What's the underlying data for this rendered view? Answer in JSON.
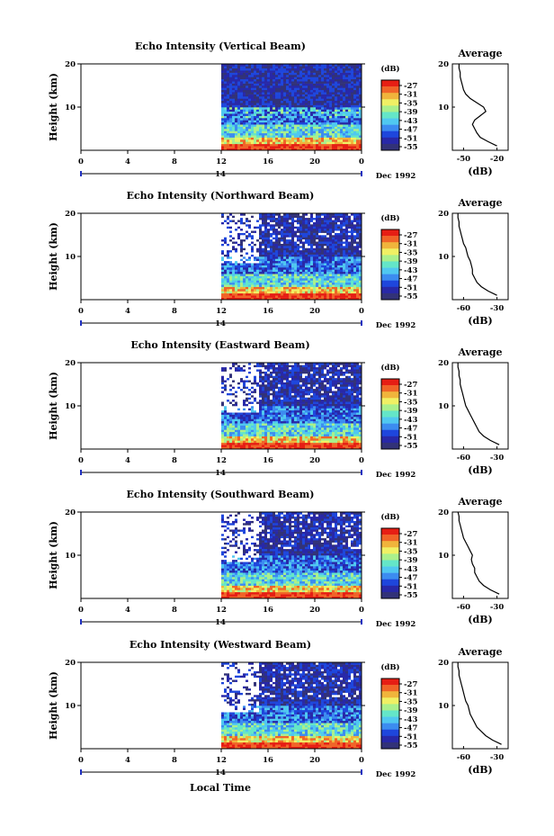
{
  "figure": {
    "xlabel": "Local Time",
    "date_label": "14",
    "date_suffix": "Dec 1992",
    "avg_title": "Average",
    "avg_xlabel": "(dB)",
    "cbar_label": "(dB)",
    "ylabel": "Height (km)"
  },
  "colors": {
    "scale": [
      "#323278",
      "#2828a8",
      "#1e46dc",
      "#3c8cf0",
      "#50c8f0",
      "#64e6c8",
      "#aaf08c",
      "#f0f064",
      "#f0b43c",
      "#f06428",
      "#e61e14"
    ],
    "no_data": "#ffffff"
  },
  "chart_data": [
    {
      "type": "heatmap",
      "title": "Echo Intensity (Vertical Beam)",
      "xlabel": "Local Time",
      "ylabel": "Height (km)",
      "x_ticks": [
        "0",
        "4",
        "8",
        "12",
        "16",
        "20",
        "0"
      ],
      "xlim": [
        0,
        24
      ],
      "ylim": [
        0,
        20
      ],
      "y_ticks": [
        "20",
        "10"
      ],
      "colorbar": {
        "label": "(dB)",
        "ticks": [
          "-27",
          "-31",
          "-35",
          "-39",
          "-43",
          "-47",
          "-51",
          "-55"
        ],
        "range": [
          -57,
          -25
        ]
      },
      "data_start_hour": 12,
      "average": {
        "x_ticks": [
          "-50",
          "-20"
        ],
        "xlim": [
          -60,
          -10
        ],
        "heights": [
          1,
          2,
          3,
          4,
          5,
          6,
          7,
          8,
          9,
          10,
          11,
          12,
          13,
          14,
          15,
          16,
          17,
          18,
          19,
          20
        ],
        "values": [
          -20,
          -28,
          -35,
          -38,
          -40,
          -42,
          -40,
          -35,
          -30,
          -32,
          -38,
          -44,
          -48,
          -50,
          -51,
          -52,
          -53,
          -53,
          -54,
          -54
        ]
      }
    },
    {
      "type": "heatmap",
      "title": "Echo Intensity (Northward Beam)",
      "xlabel": "Local Time",
      "ylabel": "Height (km)",
      "x_ticks": [
        "0",
        "4",
        "8",
        "12",
        "16",
        "20",
        "0"
      ],
      "xlim": [
        0,
        24
      ],
      "ylim": [
        0,
        20
      ],
      "y_ticks": [
        "20",
        "10"
      ],
      "colorbar": {
        "label": "(dB)",
        "ticks": [
          "-27",
          "-31",
          "-35",
          "-39",
          "-43",
          "-47",
          "-51",
          "-55"
        ],
        "range": [
          -57,
          -25
        ]
      },
      "data_start_hour": 12,
      "average": {
        "x_ticks": [
          "-60",
          "-30"
        ],
        "xlim": [
          -70,
          -20
        ],
        "heights": [
          1,
          2,
          3,
          4,
          5,
          6,
          7,
          8,
          9,
          10,
          11,
          12,
          13,
          14,
          15,
          16,
          17,
          18,
          19,
          20
        ],
        "values": [
          -30,
          -38,
          -44,
          -48,
          -50,
          -52,
          -52,
          -53,
          -54,
          -56,
          -57,
          -58,
          -60,
          -61,
          -62,
          -63,
          -64,
          -64,
          -65,
          -65
        ]
      }
    },
    {
      "type": "heatmap",
      "title": "Echo Intensity (Eastward Beam)",
      "xlabel": "Local Time",
      "ylabel": "Height (km)",
      "x_ticks": [
        "0",
        "4",
        "8",
        "12",
        "16",
        "20",
        "0"
      ],
      "xlim": [
        0,
        24
      ],
      "ylim": [
        0,
        20
      ],
      "y_ticks": [
        "20",
        "10"
      ],
      "colorbar": {
        "label": "(dB)",
        "ticks": [
          "-27",
          "-31",
          "-35",
          "-39",
          "-43",
          "-47",
          "-51",
          "-55"
        ],
        "range": [
          -57,
          -25
        ]
      },
      "data_start_hour": 12,
      "average": {
        "x_ticks": [
          "-60",
          "-30"
        ],
        "xlim": [
          -70,
          -20
        ],
        "heights": [
          1,
          2,
          3,
          4,
          5,
          6,
          7,
          8,
          9,
          10,
          11,
          12,
          13,
          14,
          15,
          16,
          17,
          18,
          19,
          20
        ],
        "values": [
          -28,
          -36,
          -42,
          -46,
          -48,
          -50,
          -52,
          -54,
          -56,
          -58,
          -59,
          -60,
          -61,
          -62,
          -63,
          -63,
          -64,
          -64,
          -65,
          -65
        ]
      }
    },
    {
      "type": "heatmap",
      "title": "Echo Intensity (Southward Beam)",
      "xlabel": "Local Time",
      "ylabel": "Height (km)",
      "x_ticks": [
        "0",
        "4",
        "8",
        "12",
        "16",
        "20",
        "0"
      ],
      "xlim": [
        0,
        24
      ],
      "ylim": [
        0,
        20
      ],
      "y_ticks": [
        "20",
        "10"
      ],
      "colorbar": {
        "label": "(dB)",
        "ticks": [
          "-27",
          "-31",
          "-35",
          "-39",
          "-43",
          "-47",
          "-51",
          "-55"
        ],
        "range": [
          -57,
          -25
        ]
      },
      "data_start_hour": 12,
      "average": {
        "x_ticks": [
          "-60",
          "-30"
        ],
        "xlim": [
          -70,
          -20
        ],
        "heights": [
          1,
          2,
          3,
          4,
          5,
          6,
          7,
          8,
          9,
          10,
          11,
          12,
          13,
          14,
          15,
          16,
          17,
          18,
          19,
          20
        ],
        "values": [
          -28,
          -36,
          -42,
          -46,
          -48,
          -50,
          -50,
          -52,
          -53,
          -52,
          -54,
          -56,
          -58,
          -60,
          -61,
          -62,
          -63,
          -64,
          -64,
          -65
        ]
      }
    },
    {
      "type": "heatmap",
      "title": "Echo Intensity (Westward Beam)",
      "xlabel": "Local Time",
      "ylabel": "Height (km)",
      "x_ticks": [
        "0",
        "4",
        "8",
        "12",
        "16",
        "20",
        "0"
      ],
      "xlim": [
        0,
        24
      ],
      "ylim": [
        0,
        20
      ],
      "y_ticks": [
        "20",
        "10"
      ],
      "colorbar": {
        "label": "(dB)",
        "ticks": [
          "-27",
          "-31",
          "-35",
          "-39",
          "-43",
          "-47",
          "-51",
          "-55"
        ],
        "range": [
          -57,
          -25
        ]
      },
      "data_start_hour": 12,
      "average": {
        "x_ticks": [
          "-60",
          "-30"
        ],
        "xlim": [
          -70,
          -20
        ],
        "heights": [
          1,
          2,
          3,
          4,
          5,
          6,
          7,
          8,
          9,
          10,
          11,
          12,
          13,
          14,
          15,
          16,
          17,
          18,
          19,
          20
        ],
        "values": [
          -26,
          -34,
          -40,
          -44,
          -48,
          -50,
          -52,
          -54,
          -55,
          -56,
          -58,
          -59,
          -60,
          -61,
          -62,
          -63,
          -64,
          -64,
          -65,
          -65
        ]
      }
    }
  ]
}
